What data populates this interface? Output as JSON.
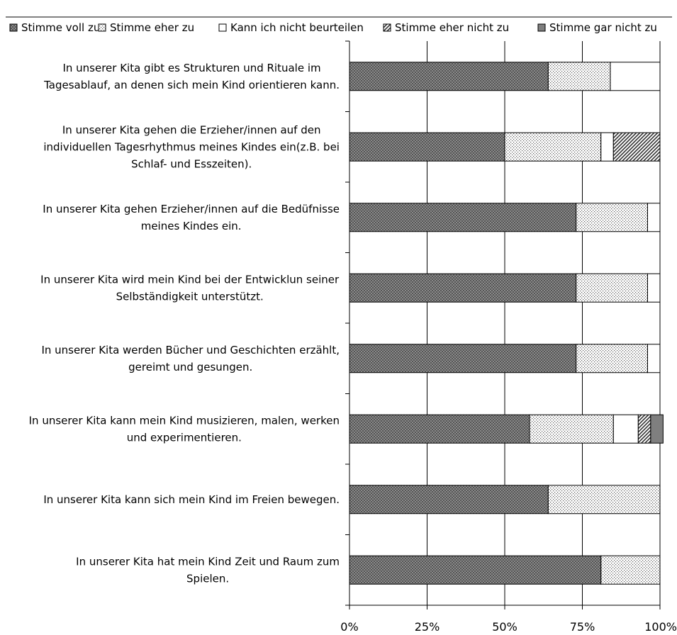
{
  "chart_data": {
    "type": "bar",
    "orientation": "horizontal",
    "stacked": true,
    "normalized": true,
    "title": "",
    "xlabel": "",
    "ylabel": "",
    "xlim": [
      0,
      100
    ],
    "xticks": [
      0,
      25,
      50,
      75,
      100
    ],
    "xtick_labels": [
      "0%",
      "25%",
      "50%",
      "75%",
      "100%"
    ],
    "grid": true,
    "legend_position": "top",
    "categories": [
      [
        "In unserer Kita gibt es Strukturen und Rituale im",
        "Tagesablauf, an denen sich mein Kind orientieren kann."
      ],
      [
        "In unserer Kita gehen die Erzieher/innen auf den",
        "individuellen Tagesrhythmus meines Kindes ein(z.B. bei",
        "Schlaf- und Esszeiten)."
      ],
      [
        "In unserer Kita gehen Erzieher/innen auf die Bedüfnisse",
        "meines Kindes ein."
      ],
      [
        "In unserer Kita wird mein Kind bei der Entwicklun seiner",
        "Selbständigkeit unterstützt."
      ],
      [
        "In unserer Kita werden Bücher und Geschichten erzählt,",
        "gereimt und gesungen."
      ],
      [
        "In unserer Kita kann mein Kind musizieren, malen, werken",
        "und experimentieren."
      ],
      [
        "In unserer Kita kann sich mein Kind im Freien bewegen."
      ],
      [
        "In unserer Kita hat mein Kind Zeit und Raum zum",
        "Spielen."
      ]
    ],
    "series": [
      {
        "name": "Stimme voll zu",
        "pattern": "crosshatch",
        "color": "#7a7a7a",
        "values": [
          64,
          50,
          73,
          73,
          73,
          58,
          64,
          81
        ]
      },
      {
        "name": "Stimme eher zu",
        "pattern": "dots",
        "color": "#b0b0b0",
        "values": [
          20,
          31,
          23,
          23,
          23,
          27,
          36,
          19
        ]
      },
      {
        "name": "Kann ich nicht beurteilen",
        "pattern": "blank",
        "color": "#ffffff",
        "values": [
          16,
          4,
          4,
          4,
          4,
          8,
          0,
          0
        ]
      },
      {
        "name": "Stimme eher nicht zu",
        "pattern": "diagonal",
        "color": "#555555",
        "values": [
          0,
          15,
          0,
          0,
          0,
          4,
          0,
          0
        ]
      },
      {
        "name": "Stimme gar nicht zu",
        "pattern": "solid",
        "color": "#7f7f7f",
        "values": [
          0,
          0,
          0,
          0,
          0,
          4,
          0,
          0
        ]
      }
    ]
  }
}
